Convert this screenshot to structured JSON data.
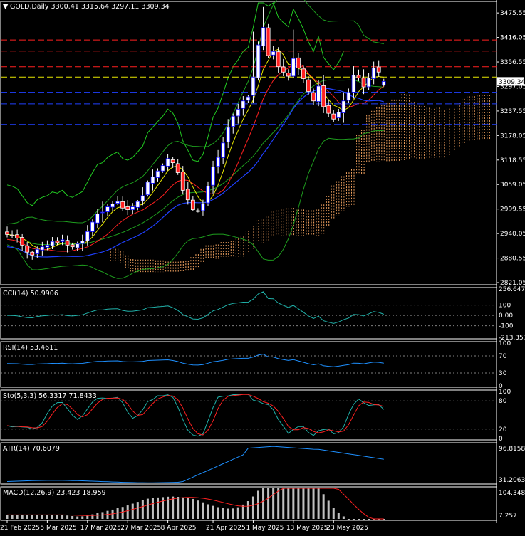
{
  "chart_data": [
    {
      "type": "candlestick",
      "header": "GOLD,Daily  3300.41 3315.64 3297.11 3309.34",
      "ohlc_last": {
        "open": 3300.41,
        "high": 3315.64,
        "low": 3297.11,
        "close": 3309.34
      },
      "price_label": "3309.34",
      "ylim": [
        2821.05,
        3500
      ],
      "yticks": [
        "3475.55",
        "3416.05",
        "3356.55",
        "3297.05",
        "3237.55",
        "3178.05",
        "3118.55",
        "3059.05",
        "2999.55",
        "2940.05",
        "2880.55",
        "2821.05"
      ],
      "x_labels": [
        "21 Feb 2025",
        "5 Mar 2025",
        "17 Mar 2025",
        "27 Mar 2025",
        "8 Apr 2025",
        "21 Apr 2025",
        "1 May 2025",
        "13 May 2025",
        "23 May 2025"
      ],
      "x_label_index": [
        0,
        8,
        16,
        24,
        32,
        41,
        49,
        57,
        65
      ],
      "levels": [
        {
          "price": 3410,
          "color": "#ff2020"
        },
        {
          "price": 3383,
          "color": "#ff2020"
        },
        {
          "price": 3345,
          "color": "#ff2020"
        },
        {
          "price": 3320,
          "color": "#e8e800"
        },
        {
          "price": 3283,
          "color": "#2040ff"
        },
        {
          "price": 3255,
          "color": "#2040ff"
        },
        {
          "price": 3205,
          "color": "#2040ff"
        }
      ],
      "closes": [
        2938,
        2935,
        2929,
        2912,
        2895,
        2888,
        2902,
        2908,
        2912,
        2921,
        2918,
        2925,
        2912,
        2908,
        2915,
        2922,
        2945,
        2968,
        2988,
        2992,
        3005,
        3012,
        3018,
        3002,
        2998,
        3005,
        3018,
        3032,
        3065,
        3078,
        3092,
        3105,
        3122,
        3112,
        3088,
        3045,
        3022,
        2998,
        2995,
        3012,
        3055,
        3102,
        3125,
        3160,
        3198,
        3225,
        3242,
        3262,
        3272,
        3320,
        3398,
        3440,
        3372,
        3382,
        3345,
        3332,
        3322,
        3365,
        3342,
        3316,
        3285,
        3262,
        3298,
        3248,
        3232,
        3218,
        3235,
        3262,
        3282,
        3325,
        3318,
        3296,
        3318,
        3342,
        3332,
        3309
      ],
      "candles": [],
      "indicators": [
        {
          "name": "CCI",
          "label": "CCI(14) 50.9906",
          "ticks": [
            "256.6471",
            "100",
            "0.00",
            "-100",
            "-213.3574"
          ]
        },
        {
          "name": "RSI",
          "label": "RSI(14) 53.4611",
          "ticks": [
            "100",
            "70",
            "30",
            "0"
          ]
        },
        {
          "name": "Stochastic",
          "label": "Sto(5,3,3) 56.3317 71.8433",
          "ticks": [
            "100",
            "80",
            "20",
            "0"
          ]
        },
        {
          "name": "ATR",
          "label": "ATR(14) 70.6079",
          "ticks": [
            "96.8158",
            "31.2063"
          ]
        },
        {
          "name": "MACD",
          "label": "MACD(12,26,9) 23.423 18.959",
          "ticks": [
            "104.348",
            "7.257"
          ]
        }
      ]
    }
  ]
}
